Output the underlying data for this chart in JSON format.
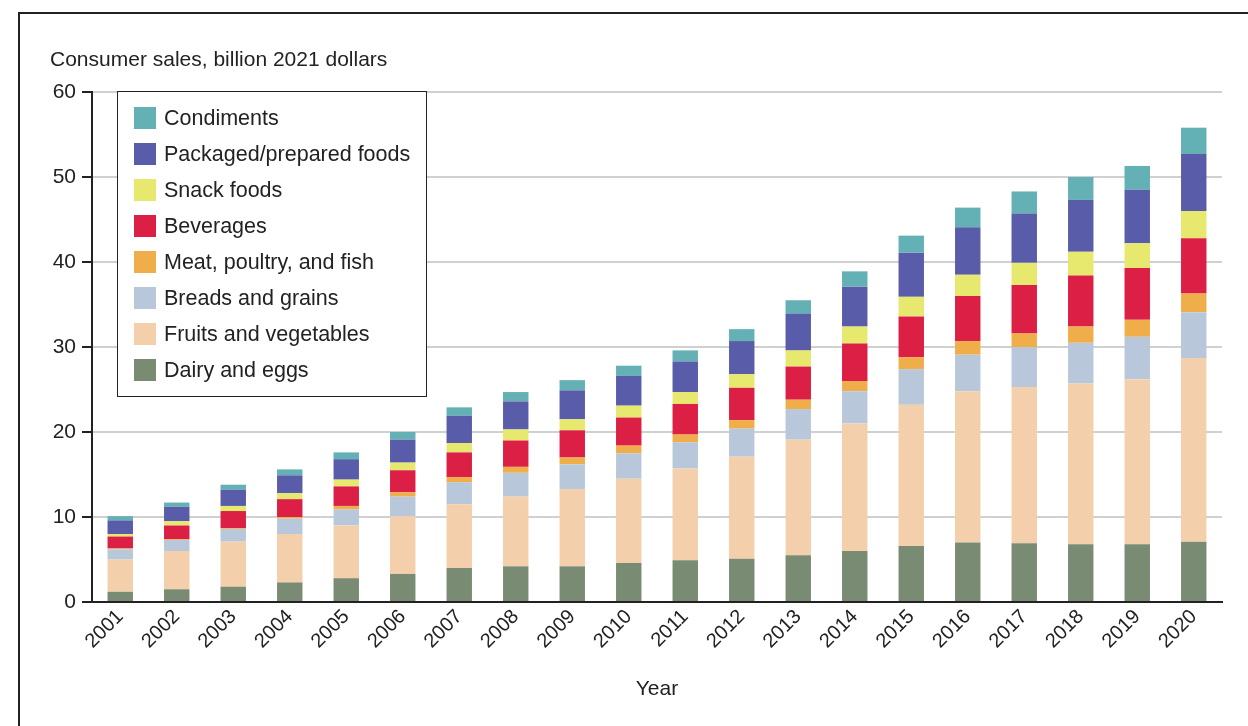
{
  "chart_data": {
    "type": "bar",
    "stacked": true,
    "ylabel": "Consumer sales, billion 2021 dollars",
    "xlabel": "Year",
    "categories": [
      "2001",
      "2002",
      "2003",
      "2004",
      "2005",
      "2006",
      "2007",
      "2008",
      "2009",
      "2010",
      "2011",
      "2012",
      "2013",
      "2014",
      "2015",
      "2016",
      "2017",
      "2018",
      "2019",
      "2020"
    ],
    "series": [
      {
        "name": "Dairy and eggs",
        "color": "#798b73",
        "values": [
          1.2,
          1.5,
          1.8,
          2.3,
          2.8,
          3.3,
          4.0,
          4.2,
          4.2,
          4.6,
          4.9,
          5.1,
          5.5,
          6.0,
          6.6,
          7.0,
          6.9,
          6.8,
          6.8,
          7.1
        ]
      },
      {
        "name": "Fruits and vegetables",
        "color": "#f3cfab",
        "values": [
          3.8,
          4.5,
          5.3,
          5.7,
          6.2,
          6.8,
          7.5,
          8.2,
          9.1,
          9.9,
          10.8,
          12.0,
          13.6,
          15.0,
          16.6,
          17.8,
          18.4,
          18.9,
          19.4,
          21.6
        ]
      },
      {
        "name": "Breads and grains",
        "color": "#b8c8da",
        "values": [
          1.2,
          1.3,
          1.5,
          1.8,
          1.9,
          2.3,
          2.6,
          2.8,
          2.9,
          3.0,
          3.1,
          3.3,
          3.6,
          3.8,
          4.2,
          4.3,
          4.7,
          4.8,
          5.0,
          5.4
        ]
      },
      {
        "name": "Meat, poultry, and fish",
        "color": "#efae4a",
        "values": [
          0.1,
          0.1,
          0.1,
          0.2,
          0.4,
          0.5,
          0.6,
          0.7,
          0.8,
          0.9,
          0.9,
          1.0,
          1.1,
          1.2,
          1.4,
          1.6,
          1.6,
          1.9,
          2.0,
          2.2
        ]
      },
      {
        "name": "Beverages",
        "color": "#db1f45",
        "values": [
          1.4,
          1.6,
          2.0,
          2.1,
          2.3,
          2.6,
          2.9,
          3.1,
          3.2,
          3.3,
          3.6,
          3.8,
          3.9,
          4.4,
          4.8,
          5.3,
          5.7,
          6.0,
          6.1,
          6.5
        ]
      },
      {
        "name": "Snack foods",
        "color": "#e7e86e",
        "values": [
          0.3,
          0.5,
          0.6,
          0.7,
          0.8,
          0.9,
          1.1,
          1.3,
          1.3,
          1.4,
          1.4,
          1.6,
          1.9,
          2.0,
          2.3,
          2.5,
          2.6,
          2.8,
          2.9,
          3.2
        ]
      },
      {
        "name": "Packaged/prepared foods",
        "color": "#595ca8",
        "values": [
          1.6,
          1.7,
          1.9,
          2.1,
          2.4,
          2.7,
          3.2,
          3.3,
          3.4,
          3.5,
          3.6,
          3.9,
          4.3,
          4.7,
          5.2,
          5.6,
          5.8,
          6.1,
          6.3,
          6.7
        ]
      },
      {
        "name": "Condiments",
        "color": "#63b0b5",
        "values": [
          0.5,
          0.5,
          0.6,
          0.7,
          0.8,
          0.9,
          1.0,
          1.1,
          1.2,
          1.2,
          1.3,
          1.4,
          1.6,
          1.8,
          2.0,
          2.3,
          2.6,
          2.7,
          2.8,
          3.1
        ]
      }
    ],
    "ylim": [
      0,
      60
    ],
    "yticks": [
      0,
      10,
      20,
      30,
      40,
      50,
      60
    ],
    "grid": "y",
    "legend": "top left"
  }
}
